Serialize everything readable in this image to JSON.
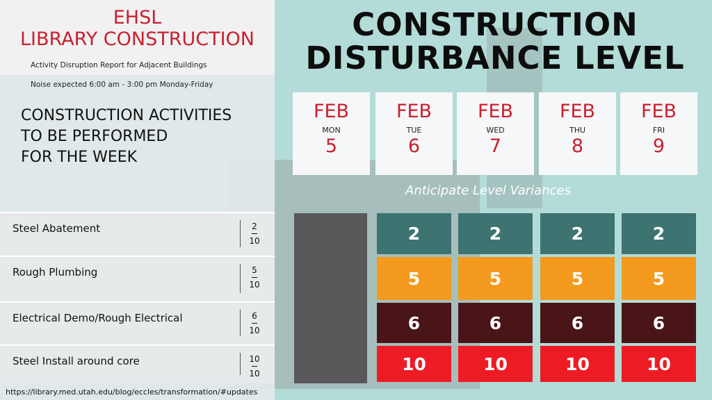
{
  "header": {
    "title_lines": [
      "EHSL",
      "LIBRARY CONSTRUCTION"
    ],
    "subtitle": "Activity Disruption Report for Adjacent Buildings",
    "note": "Noise expected 6:00 am - 3:00 pm Monday-Friday"
  },
  "main_title_lines": [
    "CONSTRUCTION",
    "DISTURBANCE LEVEL"
  ],
  "activities_heading_lines": [
    "CONSTRUCTION ACTIVITIES",
    "TO BE PERFORMED",
    "FOR THE WEEK"
  ],
  "days": [
    {
      "month": "FEB",
      "weekday": "MON",
      "day": 5
    },
    {
      "month": "FEB",
      "weekday": "TUE",
      "day": 6
    },
    {
      "month": "FEB",
      "weekday": "WED",
      "day": 7
    },
    {
      "month": "FEB",
      "weekday": "THU",
      "day": 8
    },
    {
      "month": "FEB",
      "weekday": "FRI",
      "day": 9
    }
  ],
  "variance_label": "Anticipate Level Variances",
  "rows": [
    {
      "activity": "Steel Abatement",
      "rating": {
        "numerator": 2,
        "denominator": 10
      },
      "color": "#3d7370",
      "values": [
        2,
        2,
        2,
        2
      ]
    },
    {
      "activity": "Rough Plumbing",
      "rating": {
        "numerator": 5,
        "denominator": 10
      },
      "color": "#f39a1f",
      "values": [
        5,
        5,
        5,
        5
      ]
    },
    {
      "activity": "Electrical Demo/Rough Electrical",
      "rating": {
        "numerator": 6,
        "denominator": 10
      },
      "color": "#4a1518",
      "values": [
        6,
        6,
        6,
        6
      ]
    },
    {
      "activity": "Steel Install around core",
      "rating": {
        "numerator": 10,
        "denominator": 10
      },
      "color": "#ed1c24",
      "values": [
        10,
        10,
        10,
        10
      ]
    }
  ],
  "footer_url": "https://library.med.utah.edu/blog/eccles/transformation/#updates"
}
